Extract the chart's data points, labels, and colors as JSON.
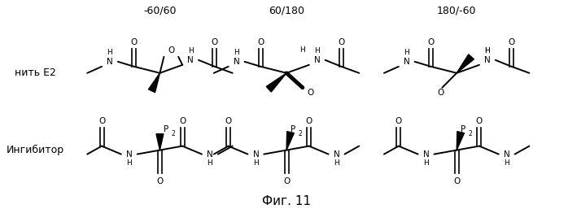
{
  "background_color": "#ffffff",
  "fig_width": 6.98,
  "fig_height": 2.57,
  "dpi": 100,
  "column_labels": [
    "-60/60",
    "60/180",
    "180/-60"
  ],
  "row_labels": [
    "нить E2",
    "Ингибитор"
  ],
  "caption": "Фиг. 11"
}
